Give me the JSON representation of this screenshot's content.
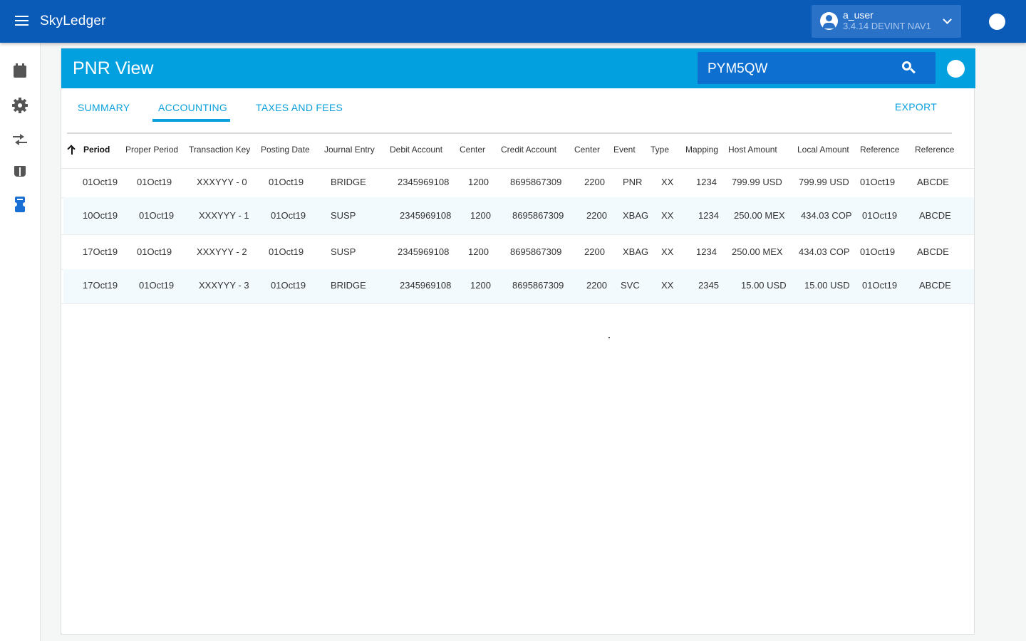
{
  "app": {
    "brand": "SkyLedger"
  },
  "user": {
    "name": "a_user",
    "version": "3.4.14 DEVINT NAV1"
  },
  "page": {
    "title": "PNR View",
    "search_value": "PYM5QW"
  },
  "tabs": [
    {
      "label": "SUMMARY",
      "active": false
    },
    {
      "label": "ACCOUNTING",
      "active": true
    },
    {
      "label": "TAXES AND FEES",
      "active": false
    }
  ],
  "export_label": "EXPORT",
  "table": {
    "sort": {
      "column": "Period",
      "direction": "ascending"
    },
    "columns": [
      "Period",
      "Proper Period",
      "Transaction Key",
      "Posting Date",
      "Journal Entry",
      "Debit Account",
      "Center",
      "Credit Account",
      "Center",
      "Event",
      "Type",
      "Mapping",
      "Host Amount",
      "Local Amount",
      "Reference",
      "Reference"
    ],
    "rows": [
      [
        "01Oct19",
        "01Oct19",
        "XXXYYY - 0",
        "01Oct19",
        "BRIDGE",
        "2345969108",
        "1200",
        "8695867309",
        "2200",
        "PNR",
        "XX",
        "1234",
        "799.99 USD",
        "799.99 USD",
        "01Oct19",
        "ABCDE"
      ],
      [
        "10Oct19",
        "01Oct19",
        "XXXYYY - 1",
        "01Oct19",
        "SUSP",
        "2345969108",
        "1200",
        "8695867309",
        "2200",
        "XBAG",
        "XX",
        "1234",
        "250.00 MEX",
        "434.03 COP",
        "01Oct19",
        "ABCDE"
      ],
      [
        "17Oct19",
        "01Oct19",
        "XXXYYY - 2",
        "01Oct19",
        "SUSP",
        "2345969108",
        "1200",
        "8695867309",
        "2200",
        "XBAG",
        "XX",
        "1234",
        "250.00 MEX",
        "434.03 COP",
        "01Oct19",
        "ABCDE"
      ],
      [
        "17Oct19",
        "01Oct19",
        "XXXYYY - 3",
        "01Oct19",
        "BRIDGE",
        "2345969108",
        "1200",
        "8695867309",
        "2200",
        "SVC",
        "XX",
        "2345",
        "15.00 USD",
        "15.00 USD",
        "01Oct19",
        "ABCDE"
      ]
    ]
  },
  "colors": {
    "appbar": "#0a5ab8",
    "header": "#03a0e0",
    "accent": "#0ba0dc",
    "search": "#0d6fcf"
  },
  "icons": [
    "menu-icon",
    "account-circle-icon",
    "chevron-down-icon",
    "calendar-icon",
    "gear-icon",
    "swap-icon",
    "book-icon",
    "ticket-icon",
    "search-icon",
    "sort-ascending-icon"
  ]
}
